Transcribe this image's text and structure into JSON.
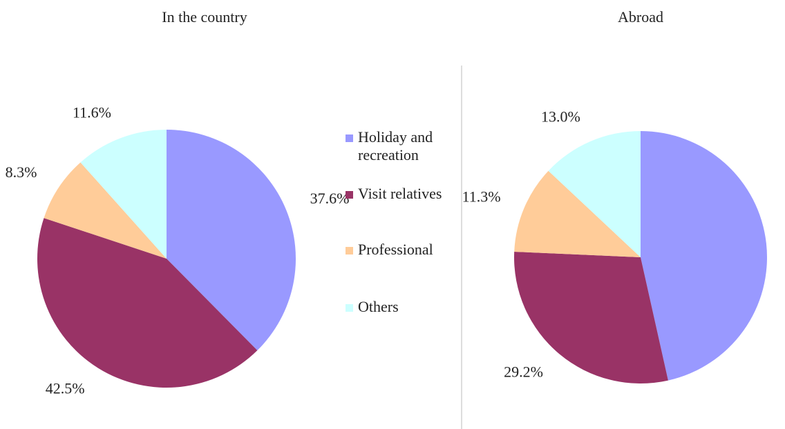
{
  "chart_data": [
    {
      "type": "pie",
      "title": "In the country",
      "categories": [
        "Holiday and recreation",
        "Visit relatives",
        "Professional",
        "Others"
      ],
      "values": [
        37.6,
        42.5,
        8.3,
        11.6
      ],
      "value_labels": [
        "37.6%",
        "42.5%",
        "8.3%",
        "11.6%"
      ],
      "colors": [
        "#9999ff",
        "#993366",
        "#ffcc99",
        "#ccffff"
      ]
    },
    {
      "type": "pie",
      "title": "Abroad",
      "values": [
        46.5,
        29.2,
        11.3,
        13.0
      ],
      "value_labels": [
        "46.5%",
        "29.2%",
        "11.3%",
        "13.0%"
      ],
      "colors": [
        "#9999ff",
        "#993366",
        "#ffcc99",
        "#ccffff"
      ]
    }
  ]
}
